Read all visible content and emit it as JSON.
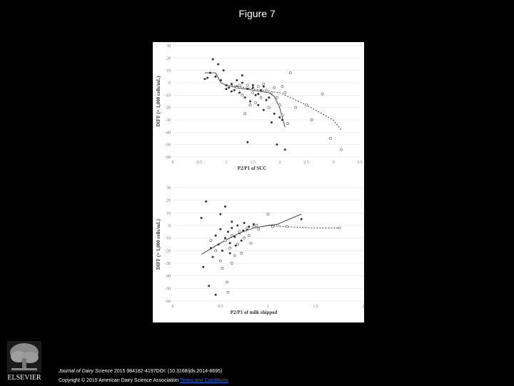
{
  "slide": {
    "title": "Figure 7"
  },
  "chart_data": [
    {
      "type": "scatter",
      "title": "",
      "xlabel": "P2/P1 of SCC",
      "ylabel": "DIFF (× 1,000 cells/mL)",
      "xlim": [
        0,
        3.5
      ],
      "ylim": [
        -60,
        30
      ],
      "x_ticks": [
        0,
        0.5,
        1,
        1.5,
        2,
        2.5,
        3,
        3.5
      ],
      "y_ticks": [
        30,
        20,
        10,
        0,
        -10,
        -20,
        -30,
        -40,
        -50,
        -60
      ],
      "grid": "horizontal",
      "series": [
        {
          "marker": "filled",
          "points": [
            [
              0.6,
              3
            ],
            [
              0.65,
              4
            ],
            [
              0.7,
              8
            ],
            [
              0.75,
              19
            ],
            [
              0.8,
              5
            ],
            [
              0.85,
              15
            ],
            [
              0.9,
              2
            ],
            [
              0.95,
              10
            ],
            [
              1.0,
              -2
            ],
            [
              1.05,
              -4
            ],
            [
              1.1,
              -1
            ],
            [
              1.15,
              -6
            ],
            [
              1.2,
              -3
            ],
            [
              1.25,
              -8
            ],
            [
              1.3,
              6
            ],
            [
              1.35,
              -12
            ],
            [
              1.4,
              -5
            ],
            [
              1.45,
              -15
            ],
            [
              1.5,
              -2
            ],
            [
              1.55,
              -10
            ],
            [
              1.6,
              -18
            ],
            [
              1.65,
              -6
            ],
            [
              1.7,
              -22
            ],
            [
              1.75,
              -14
            ],
            [
              1.8,
              -20
            ],
            [
              1.85,
              -32
            ],
            [
              1.9,
              -25
            ],
            [
              1.95,
              -50
            ],
            [
              2.0,
              -28
            ],
            [
              2.05,
              -30
            ],
            [
              2.1,
              -54
            ],
            [
              1.4,
              -48
            ],
            [
              1.2,
              2
            ],
            [
              1.3,
              0
            ],
            [
              1.5,
              -4
            ],
            [
              1.6,
              -9
            ],
            [
              1.7,
              -3
            ],
            [
              1.8,
              -12
            ],
            [
              1.1,
              -7
            ],
            [
              1.0,
              -5
            ]
          ]
        },
        {
          "marker": "open",
          "points": [
            [
              1.2,
              -4
            ],
            [
              1.3,
              -10
            ],
            [
              1.35,
              -25
            ],
            [
              1.4,
              -2
            ],
            [
              1.5,
              -8
            ],
            [
              1.55,
              -16
            ],
            [
              1.6,
              -3
            ],
            [
              1.65,
              -12
            ],
            [
              1.7,
              -1
            ],
            [
              1.75,
              -6
            ],
            [
              1.8,
              -20
            ],
            [
              1.85,
              -8
            ],
            [
              1.9,
              -4
            ],
            [
              2.0,
              -18
            ],
            [
              2.05,
              -26
            ],
            [
              2.1,
              -8
            ],
            [
              2.2,
              8
            ],
            [
              2.3,
              -20
            ],
            [
              2.5,
              -18
            ],
            [
              2.6,
              -30
            ],
            [
              2.8,
              -9
            ],
            [
              2.95,
              -45
            ],
            [
              3.15,
              -54
            ],
            [
              1.45,
              -18
            ],
            [
              1.25,
              -2
            ],
            [
              2.15,
              -33
            ],
            [
              2.05,
              -3
            ],
            [
              1.95,
              -12
            ]
          ]
        },
        {
          "name": "fit-solid",
          "line": "solid",
          "points": [
            [
              0.6,
              8
            ],
            [
              0.8,
              8
            ],
            [
              0.9,
              0
            ],
            [
              1.0,
              -2
            ],
            [
              1.2,
              -4
            ],
            [
              1.5,
              -6
            ],
            [
              1.8,
              -8
            ],
            [
              1.9,
              -11
            ],
            [
              2.0,
              -20
            ],
            [
              2.1,
              -36
            ]
          ]
        },
        {
          "name": "fit-dashed",
          "line": "dashed",
          "points": [
            [
              1.1,
              -2
            ],
            [
              1.5,
              -5
            ],
            [
              2.0,
              -8
            ],
            [
              2.5,
              -18
            ],
            [
              3.0,
              -30
            ],
            [
              3.15,
              -38
            ]
          ]
        }
      ]
    },
    {
      "type": "scatter",
      "title": "",
      "xlabel": "P2/P1 of milk shipped",
      "ylabel": "DIFF (× 1,000 cells/mL)",
      "xlim": [
        0,
        2
      ],
      "ylim": [
        -60,
        30
      ],
      "x_ticks": [
        0,
        0.5,
        1,
        1.5,
        2
      ],
      "y_ticks": [
        30,
        20,
        10,
        0,
        -10,
        -20,
        -30,
        -40,
        -50,
        -60
      ],
      "grid": "horizontal",
      "series": [
        {
          "marker": "filled",
          "points": [
            [
              0.3,
              6
            ],
            [
              0.32,
              -33
            ],
            [
              0.35,
              19
            ],
            [
              0.38,
              -48
            ],
            [
              0.4,
              -18
            ],
            [
              0.42,
              -25
            ],
            [
              0.45,
              -8
            ],
            [
              0.48,
              -15
            ],
            [
              0.5,
              -3
            ],
            [
              0.52,
              -20
            ],
            [
              0.55,
              -10
            ],
            [
              0.58,
              -5
            ],
            [
              0.6,
              -14
            ],
            [
              0.62,
              -2
            ],
            [
              0.65,
              -9
            ],
            [
              0.68,
              0
            ],
            [
              0.7,
              -6
            ],
            [
              0.72,
              -12
            ],
            [
              0.75,
              2
            ],
            [
              0.78,
              -3
            ],
            [
              0.8,
              -1
            ],
            [
              0.85,
              1
            ],
            [
              0.55,
              15
            ],
            [
              0.5,
              9
            ],
            [
              0.45,
              -55
            ],
            [
              0.6,
              -22
            ],
            [
              1.35,
              5
            ],
            [
              0.62,
              3
            ],
            [
              0.66,
              -16
            ],
            [
              0.74,
              -4
            ]
          ]
        },
        {
          "marker": "open",
          "points": [
            [
              0.4,
              -12
            ],
            [
              0.45,
              -20
            ],
            [
              0.5,
              -28
            ],
            [
              0.52,
              -34
            ],
            [
              0.55,
              -12
            ],
            [
              0.57,
              -45
            ],
            [
              0.58,
              -53
            ],
            [
              0.6,
              -18
            ],
            [
              0.62,
              -8
            ],
            [
              0.65,
              -24
            ],
            [
              0.68,
              -15
            ],
            [
              0.7,
              -5
            ],
            [
              0.72,
              -22
            ],
            [
              0.75,
              -10
            ],
            [
              0.78,
              -2
            ],
            [
              0.8,
              -8
            ],
            [
              0.85,
              -1
            ],
            [
              0.88,
              0
            ],
            [
              0.9,
              -3
            ],
            [
              1.0,
              9
            ],
            [
              1.05,
              -1
            ],
            [
              1.1,
              0
            ],
            [
              1.2,
              -1
            ],
            [
              1.75,
              -2
            ],
            [
              0.62,
              -30
            ],
            [
              0.82,
              -14
            ]
          ]
        },
        {
          "name": "fit-solid",
          "line": "solid",
          "points": [
            [
              0.3,
              -23
            ],
            [
              0.5,
              -14
            ],
            [
              0.7,
              -6
            ],
            [
              0.85,
              -2
            ],
            [
              1.0,
              0
            ],
            [
              1.1,
              1
            ],
            [
              1.35,
              9
            ]
          ]
        },
        {
          "name": "fit-dashed",
          "line": "dashed",
          "points": [
            [
              1.0,
              0
            ],
            [
              1.2,
              -1
            ],
            [
              1.5,
              -2
            ],
            [
              1.75,
              -2
            ]
          ]
        }
      ]
    }
  ],
  "footer": {
    "journal": "Journal of Dairy Science",
    "citation": " 2015 984182-4197DOI: (10.3168/jds.2014-8695)",
    "copyright": "Copyright © 2015 American Dairy Science Association ",
    "terms_link": "Terms and Conditions"
  },
  "logo": {
    "text": "ELSEVIER",
    "icon": "elsevier-tree-icon"
  },
  "colors": {
    "background": "#000000",
    "marker": "#333333",
    "grid": "#dddddd",
    "link": "#2a6fd6"
  }
}
